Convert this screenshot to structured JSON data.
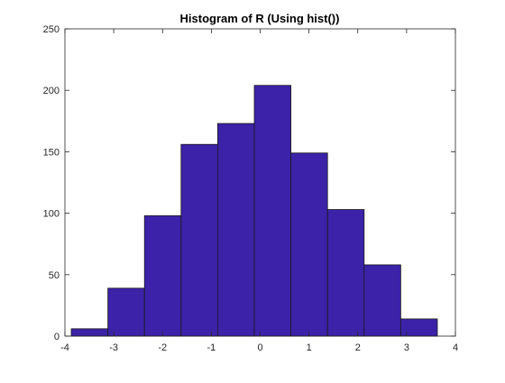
{
  "chart_data": {
    "type": "bar",
    "title": "Histogram of R (Using hist())",
    "xlabel": "",
    "ylabel": "",
    "xlim": [
      -4,
      4
    ],
    "ylim": [
      0,
      250
    ],
    "x_ticks": [
      -4,
      -3,
      -2,
      -1,
      0,
      1,
      2,
      3,
      4
    ],
    "y_ticks": [
      0,
      50,
      100,
      150,
      200,
      250
    ],
    "grid": false,
    "bin_edges": [
      -3.87,
      -3.12,
      -2.37,
      -1.62,
      -0.87,
      -0.12,
      0.63,
      1.38,
      2.13,
      2.88,
      3.63
    ],
    "values": [
      6,
      39,
      98,
      156,
      173,
      204,
      149,
      103,
      58,
      14
    ],
    "colors": {
      "bar_fill": "#3b22a8",
      "bar_edge": "#1a1a1a",
      "axis": "#262626",
      "text": "#262626"
    }
  }
}
